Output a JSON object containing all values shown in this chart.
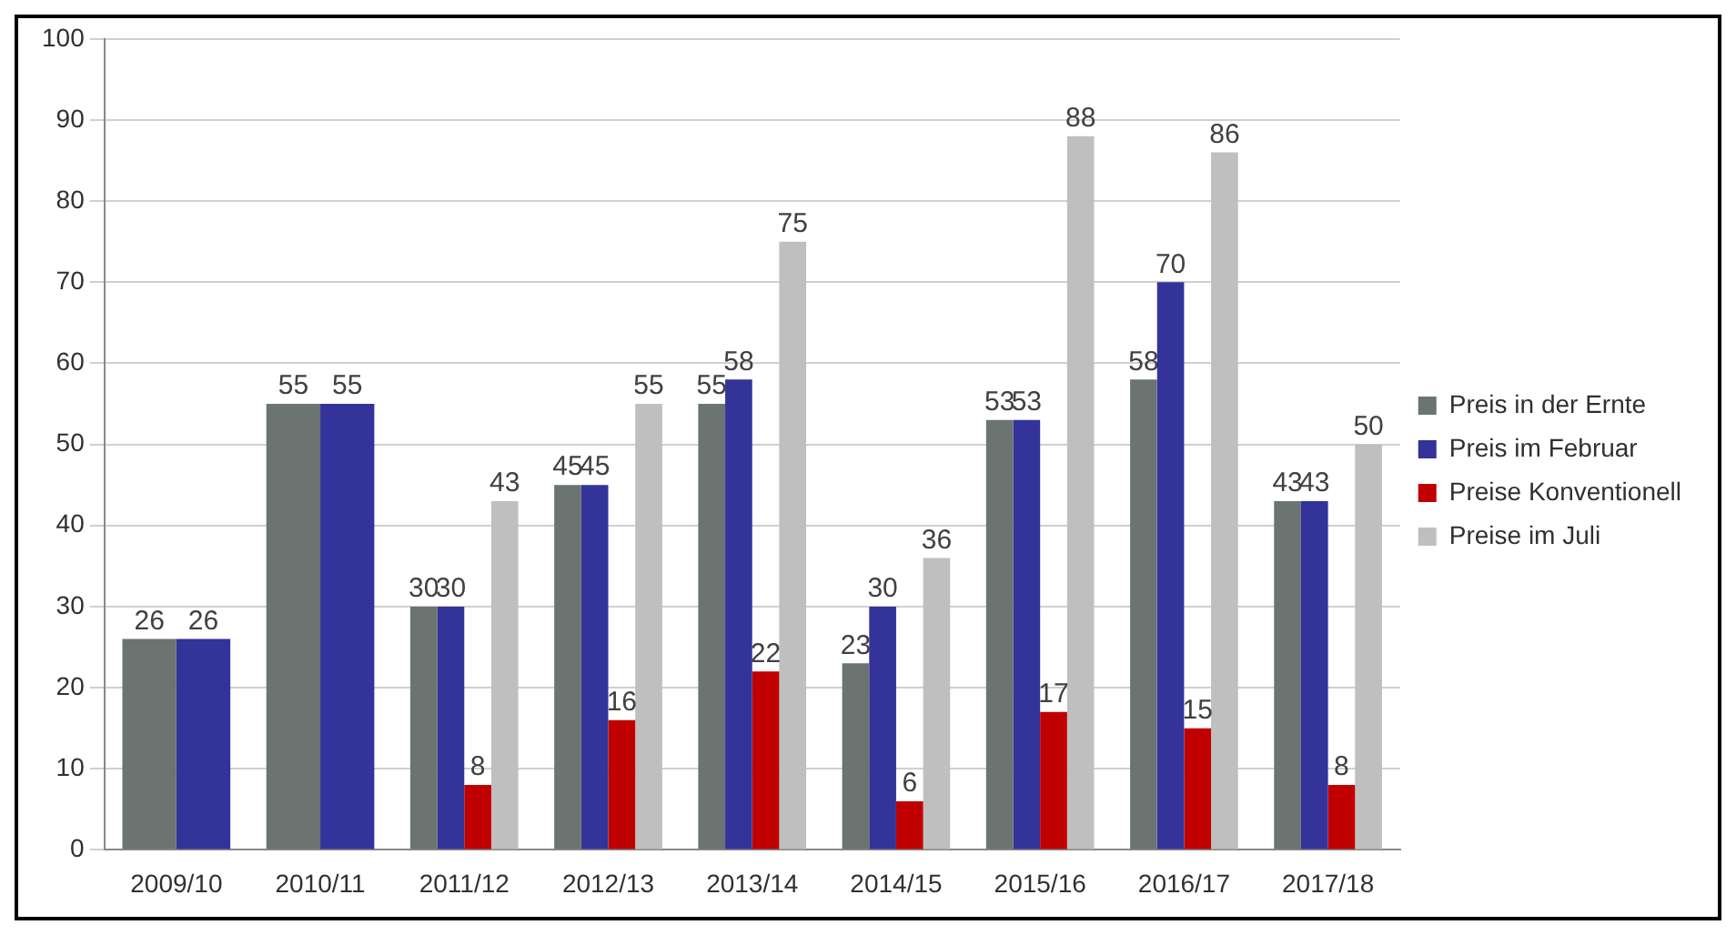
{
  "chart_data": {
    "type": "bar",
    "categories": [
      "2009/10",
      "2010/11",
      "2011/12",
      "2012/13",
      "2013/14",
      "2014/15",
      "2015/16",
      "2016/17",
      "2017/18"
    ],
    "series": [
      {
        "name": "Preis in der Ernte",
        "color": "#6b7470",
        "values": [
          26,
          55,
          30,
          45,
          55,
          23,
          53,
          58,
          43
        ]
      },
      {
        "name": "Preis im Februar",
        "color": "#333399",
        "values": [
          26,
          55,
          30,
          45,
          58,
          30,
          53,
          70,
          43
        ]
      },
      {
        "name": "Preise Konventionell",
        "color": "#c00000",
        "values": [
          null,
          null,
          8,
          16,
          22,
          6,
          17,
          15,
          8
        ]
      },
      {
        "name": "Preise im Juli",
        "color": "#bfbfbf",
        "values": [
          null,
          null,
          43,
          55,
          75,
          36,
          88,
          86,
          50
        ]
      }
    ],
    "ylim": [
      0,
      100
    ],
    "yticks": [
      0,
      10,
      20,
      30,
      40,
      50,
      60,
      70,
      80,
      90,
      100
    ],
    "grid": "y",
    "legend": "right",
    "data_labels": true
  }
}
